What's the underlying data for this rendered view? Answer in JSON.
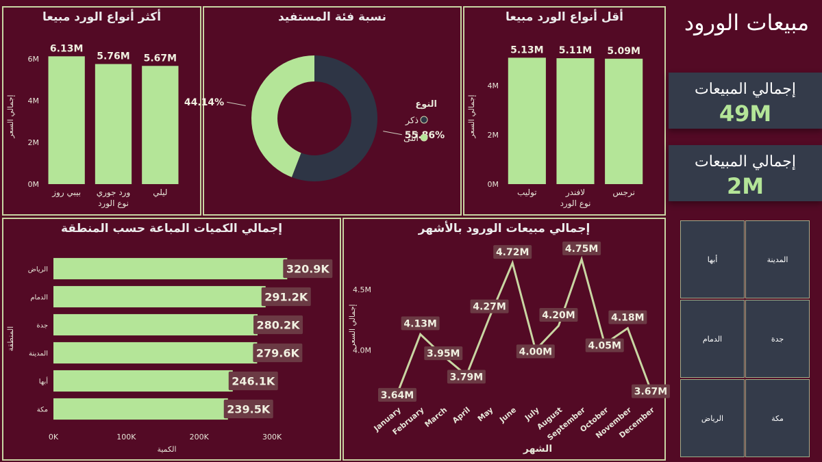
{
  "dashboard_title": "مبيعات الورود",
  "kpis": [
    {
      "label": "إجمالي المبيعات",
      "value": "49M"
    },
    {
      "label": "إجمالي المبيعات",
      "value": "2M"
    }
  ],
  "slicer_header": "المدينة",
  "slicer_items": [
    "أبها",
    "الدمام",
    "جدة",
    "الرياض",
    "مكة"
  ],
  "colors": {
    "bar": "#b4e598",
    "dark": "#2e3545",
    "bg": "#530a25",
    "border": "#c9d6a3",
    "tile": "#343b4a"
  },
  "chart_data": [
    {
      "type": "bar",
      "title": "أكثر أنواع الورد مبيعا",
      "categories": [
        "بيبي روز",
        "ورد جوري",
        "ليلي"
      ],
      "values": [
        6.13,
        5.76,
        5.67
      ],
      "data_labels": [
        "6.13M",
        "5.76M",
        "5.67M"
      ],
      "ticks": [
        {
          "v": 0,
          "t": "0M"
        },
        {
          "v": 2,
          "t": "2M"
        },
        {
          "v": 4,
          "t": "4M"
        },
        {
          "v": 6,
          "t": "6M"
        }
      ],
      "ylim": [
        0,
        6.5
      ],
      "xlabel": "نوع الورد",
      "ylabel": "إجمالي السعر"
    },
    {
      "type": "pie",
      "title": "نسبة فئة المستفيد",
      "legend_title": "النوع",
      "slices": [
        {
          "name": "ذكر",
          "value": 55.86,
          "label": "55.86%",
          "color": "#2e3545"
        },
        {
          "name": "أنثى",
          "value": 44.14,
          "label": "44.14%",
          "color": "#b4e598"
        }
      ]
    },
    {
      "type": "bar",
      "title": "أقل أنواع الورد مبيعا",
      "categories": [
        "توليب",
        "لافندر",
        "نرجس"
      ],
      "values": [
        5.13,
        5.11,
        5.09
      ],
      "data_labels": [
        "5.13M",
        "5.11M",
        "5.09M"
      ],
      "ticks": [
        {
          "v": 0,
          "t": "0M"
        },
        {
          "v": 2,
          "t": "2M"
        },
        {
          "v": 4,
          "t": "4M"
        }
      ],
      "ylim": [
        0,
        5.5
      ],
      "xlabel": "نوع الورد",
      "ylabel": "إجمالي السعر"
    },
    {
      "type": "bar",
      "orientation": "horizontal",
      "title": "إجمالي الكميات المباعة حسب المنطقة",
      "categories": [
        "الرياض",
        "الدمام",
        "جدة",
        "المدينة",
        "أبها",
        "مكة"
      ],
      "values": [
        320.9,
        291.2,
        280.2,
        279.6,
        246.1,
        239.5
      ],
      "data_labels": [
        "320.9K",
        "291.2K",
        "280.2K",
        "279.6K",
        "246.1K",
        "239.5K"
      ],
      "ticks": [
        {
          "v": 0,
          "t": "0K"
        },
        {
          "v": 100,
          "t": "100K"
        },
        {
          "v": 200,
          "t": "200K"
        },
        {
          "v": 300,
          "t": "300K"
        }
      ],
      "xlim": [
        0,
        330
      ],
      "xlabel": "الكمية",
      "ylabel": "المنطقة"
    },
    {
      "type": "line",
      "title": "إجمالي مبيعات الورود بالأشهر",
      "categories": [
        "January",
        "February",
        "March",
        "April",
        "May",
        "June",
        "July",
        "August",
        "September",
        "October",
        "November",
        "December"
      ],
      "values": [
        3.64,
        4.13,
        3.95,
        3.79,
        4.27,
        4.72,
        4.0,
        4.2,
        4.75,
        4.05,
        4.18,
        3.67
      ],
      "data_labels": [
        "3.64M",
        "4.13M",
        "3.95M",
        "3.79M",
        "4.27M",
        "4.72M",
        "4.00M",
        "4.20M",
        "4.75M",
        "4.05M",
        "4.18M",
        "3.67M"
      ],
      "ticks": [
        {
          "v": 4.0,
          "t": "4.0M"
        },
        {
          "v": 4.5,
          "t": "4.5M"
        }
      ],
      "ylim": [
        3.6,
        4.8
      ],
      "xlabel": "الشهر",
      "ylabel": "إجمالي السعر"
    }
  ]
}
